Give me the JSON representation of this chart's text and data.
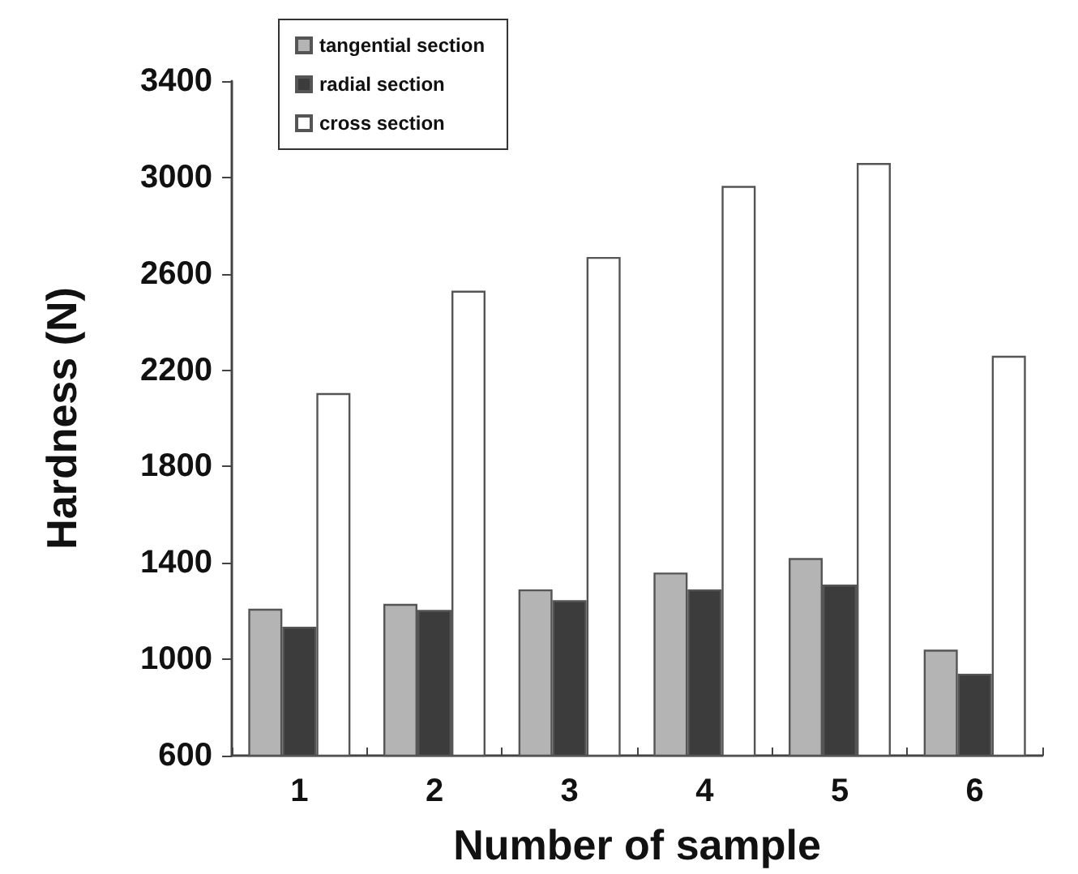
{
  "chart_data": {
    "type": "bar",
    "xlabel": "Number of sample",
    "ylabel": "Hardness (N)",
    "categories": [
      "1",
      "2",
      "3",
      "4",
      "5",
      "6"
    ],
    "series": [
      {
        "name": "tangential section",
        "color": "#b4b4b4",
        "values": [
          1210,
          1230,
          1290,
          1360,
          1420,
          1040
        ]
      },
      {
        "name": "radial section",
        "color": "#3c3c3c",
        "values": [
          1135,
          1205,
          1245,
          1290,
          1310,
          940
        ]
      },
      {
        "name": "cross section",
        "color": "#ffffff",
        "values": [
          2105,
          2530,
          2670,
          2965,
          3060,
          2260
        ]
      }
    ],
    "ylim": [
      600,
      3400
    ],
    "yticks": [
      600,
      1000,
      1400,
      1800,
      2200,
      2600,
      3000,
      3400
    ],
    "grid": false,
    "legend": "top left"
  }
}
